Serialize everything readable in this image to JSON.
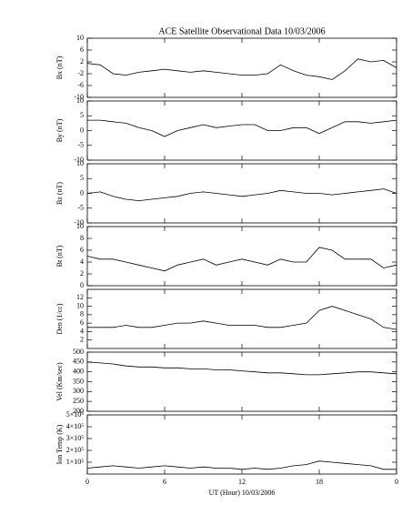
{
  "chart_data": [
    {
      "type": "line",
      "title": "ACE Satellite Observational Data   10/03/2006",
      "ylabel": "Bx (nT)",
      "ylim": [
        -10,
        10
      ],
      "yticks": [
        -10,
        -6,
        -2,
        2,
        6,
        10
      ],
      "x": [
        0,
        1,
        2,
        3,
        4,
        5,
        6,
        7,
        8,
        9,
        10,
        11,
        12,
        13,
        14,
        15,
        16,
        17,
        18,
        19,
        20,
        21,
        22,
        23,
        24
      ],
      "values": [
        1.5,
        1,
        -2,
        -2.5,
        -1.5,
        -1,
        -0.5,
        -1,
        -1.5,
        -1,
        -1.5,
        -2,
        -2.5,
        -2.5,
        -2,
        1,
        -1,
        -2.5,
        -3,
        -4,
        -1,
        3,
        2,
        2.5,
        0
      ],
      "color": "#000000"
    },
    {
      "type": "line",
      "ylabel": "By (nT)",
      "ylim": [
        -10,
        10
      ],
      "yticks": [
        -10,
        -5,
        0,
        5,
        10
      ],
      "x": [
        0,
        1,
        2,
        3,
        4,
        5,
        6,
        7,
        8,
        9,
        10,
        11,
        12,
        13,
        14,
        15,
        16,
        17,
        18,
        19,
        20,
        21,
        22,
        23,
        24
      ],
      "values": [
        3.5,
        3.5,
        3,
        2.5,
        1,
        0,
        -2,
        0,
        1,
        2,
        1,
        1.5,
        2,
        2,
        0,
        0,
        1,
        1,
        -1,
        1,
        3,
        3,
        2.5,
        3,
        3.5
      ],
      "color": "#000000"
    },
    {
      "type": "line",
      "ylabel": "Bz (nT)",
      "ylim": [
        -10,
        10
      ],
      "yticks": [
        -10,
        -5,
        0,
        5,
        10
      ],
      "x": [
        0,
        1,
        2,
        3,
        4,
        5,
        6,
        7,
        8,
        9,
        10,
        11,
        12,
        13,
        14,
        15,
        16,
        17,
        18,
        19,
        20,
        21,
        22,
        23,
        24
      ],
      "values": [
        0,
        0.5,
        -1,
        -2,
        -2.5,
        -2,
        -1.5,
        -1,
        0,
        0.5,
        0,
        -0.5,
        -1,
        -0.5,
        0,
        1,
        0.5,
        0,
        0,
        -0.5,
        0,
        0.5,
        1,
        1.5,
        0
      ],
      "color": "#000000"
    },
    {
      "type": "line",
      "ylabel": "Bt (nT)",
      "ylim": [
        0,
        10
      ],
      "yticks": [
        0,
        2,
        4,
        6,
        8,
        10
      ],
      "x": [
        0,
        1,
        2,
        3,
        4,
        5,
        6,
        7,
        8,
        9,
        10,
        11,
        12,
        13,
        14,
        15,
        16,
        17,
        18,
        19,
        20,
        21,
        22,
        23,
        24
      ],
      "values": [
        5,
        4.5,
        4.5,
        4,
        3.5,
        3,
        2.5,
        3.5,
        4,
        4.5,
        3.5,
        4,
        4.5,
        4,
        3.5,
        4.5,
        4,
        4,
        6.5,
        6,
        4.5,
        4.5,
        4.5,
        3,
        3.5
      ],
      "color": "#000000"
    },
    {
      "type": "line",
      "ylabel": "Den (1/cc)",
      "ylim": [
        0,
        14
      ],
      "yticks": [
        2,
        4,
        6,
        8,
        10,
        12
      ],
      "x": [
        0,
        1,
        2,
        3,
        4,
        5,
        6,
        7,
        8,
        9,
        10,
        11,
        12,
        13,
        14,
        15,
        16,
        17,
        18,
        19,
        20,
        21,
        22,
        23,
        24
      ],
      "values": [
        5,
        5,
        5,
        5.5,
        5,
        5,
        5.5,
        6,
        6,
        6.5,
        6,
        5.5,
        5.5,
        5.5,
        5,
        5,
        5.5,
        6,
        9,
        10,
        9,
        8,
        7,
        5,
        4.5
      ],
      "color": "#000000"
    },
    {
      "type": "line",
      "ylabel": "Vel (Km/sec)",
      "ylim": [
        200,
        500
      ],
      "yticks": [
        200,
        250,
        300,
        350,
        400,
        450,
        500
      ],
      "x": [
        0,
        1,
        2,
        3,
        4,
        5,
        6,
        7,
        8,
        9,
        10,
        11,
        12,
        13,
        14,
        15,
        16,
        17,
        18,
        19,
        20,
        21,
        22,
        23,
        24
      ],
      "values": [
        450,
        445,
        440,
        430,
        425,
        425,
        420,
        420,
        415,
        415,
        410,
        410,
        405,
        400,
        395,
        395,
        390,
        385,
        385,
        390,
        395,
        400,
        400,
        395,
        390
      ],
      "color": "#000000"
    },
    {
      "type": "line",
      "ylabel": "Ion Temp (K)",
      "ylim": [
        0,
        500000
      ],
      "yticks": [
        {
          "value": 100000,
          "label": "1×10⁵"
        },
        {
          "value": 200000,
          "label": "2×10⁵"
        },
        {
          "value": 300000,
          "label": "3×10⁵"
        },
        {
          "value": 400000,
          "label": "4×10⁵"
        },
        {
          "value": 500000,
          "label": "5×10⁵"
        }
      ],
      "x": [
        0,
        1,
        2,
        3,
        4,
        5,
        6,
        7,
        8,
        9,
        10,
        11,
        12,
        13,
        14,
        15,
        16,
        17,
        18,
        19,
        20,
        21,
        22,
        23,
        24
      ],
      "values": [
        50000,
        60000,
        70000,
        60000,
        50000,
        60000,
        70000,
        60000,
        50000,
        60000,
        50000,
        50000,
        40000,
        50000,
        40000,
        50000,
        70000,
        80000,
        110000,
        100000,
        90000,
        80000,
        70000,
        40000,
        40000
      ],
      "color": "#000000",
      "xlabel": "UT (Hour)   10/03/2006",
      "xlim": [
        0,
        24
      ],
      "xticks": [
        {
          "value": 0,
          "label": "0"
        },
        6,
        12,
        18,
        {
          "value": 24,
          "label": "0"
        }
      ]
    }
  ]
}
